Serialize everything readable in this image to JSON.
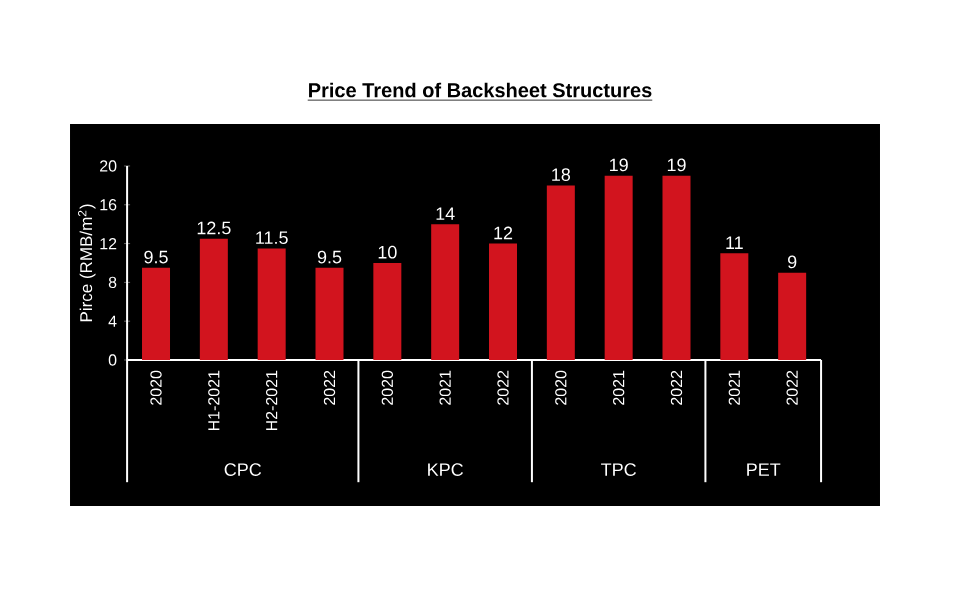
{
  "chart_data": {
    "type": "bar",
    "title": "Price Trend of Backsheet Structures",
    "ylabel": "Pirce (RMB/m$^{2}$)",
    "categories": [
      "2020",
      "H1-2021",
      "H2-2021",
      "2022",
      "2020",
      "2021",
      "2022",
      "2020",
      "2021",
      "2022",
      "2021",
      "2022"
    ],
    "values": [
      9.5,
      12.5,
      11.5,
      9.5,
      10,
      14,
      12,
      18,
      19,
      19,
      11,
      9
    ],
    "color": "#d2141e",
    "ylim": [
      0,
      20
    ],
    "yticks": [
      0,
      4,
      8,
      12,
      16,
      20
    ],
    "data_labels": true,
    "annotations": [
      "CPC",
      "KPC",
      "TPC",
      "PET"
    ]
  }
}
